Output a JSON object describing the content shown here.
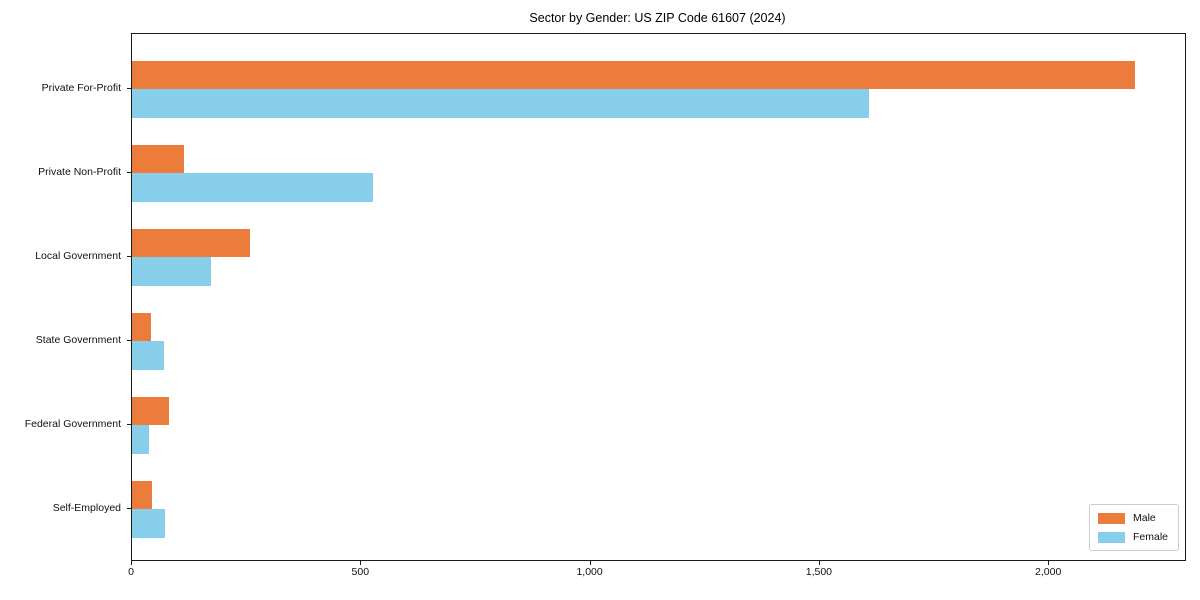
{
  "chart_data": {
    "type": "bar",
    "orientation": "horizontal",
    "title": "Sector by Gender: US ZIP Code 61607 (2024)",
    "xlabel": "",
    "ylabel": "",
    "categories": [
      "Private For-Profit",
      "Private Non-Profit",
      "Local Government",
      "State Government",
      "Federal Government",
      "Self-Employed"
    ],
    "series": [
      {
        "name": "Male",
        "color": "#ec7c3c",
        "values": [
          2187,
          113,
          258,
          41,
          81,
          44
        ]
      },
      {
        "name": "Female",
        "color": "#87ceeb",
        "values": [
          1606,
          526,
          172,
          70,
          36,
          72
        ]
      }
    ],
    "xlim": [
      0,
      2296
    ],
    "xticks": [
      {
        "value": 0,
        "label": "0"
      },
      {
        "value": 500,
        "label": "500"
      },
      {
        "value": 1000,
        "label": "1,000"
      },
      {
        "value": 1500,
        "label": "1,500"
      },
      {
        "value": 2000,
        "label": "2,000"
      }
    ],
    "grid": false,
    "legend_position": "lower right",
    "colors": {
      "background": "#ffffff",
      "spine": "#1a1a1a",
      "text": "#111111",
      "legend_border": "#cccccc"
    }
  }
}
